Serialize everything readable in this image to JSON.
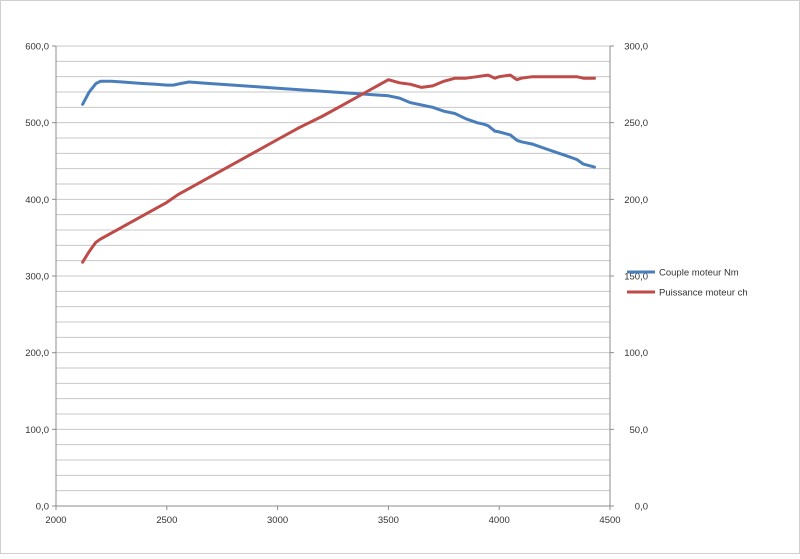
{
  "colors": {
    "couple": "#4a7ebb",
    "puissance": "#be4b48",
    "grid": "#c8c8c8",
    "axis": "#8c8c8c",
    "border": "#d0d0d0"
  },
  "chart_data": {
    "type": "line",
    "title": "",
    "xlim": [
      2000,
      4500
    ],
    "x_ticks": [
      "2000",
      "2500",
      "3000",
      "3500",
      "4000",
      "4500"
    ],
    "y_left": {
      "lim": [
        0,
        600
      ],
      "ticks": [
        "0,0",
        "100,0",
        "200,0",
        "300,0",
        "400,0",
        "500,0",
        "600,0"
      ]
    },
    "y_right": {
      "lim": [
        0,
        300
      ],
      "ticks": [
        "0,0",
        "50,0",
        "100,0",
        "150,0",
        "200,0",
        "250,0",
        "300,0"
      ]
    },
    "grid": true,
    "legend_position": "right",
    "series": [
      {
        "name": "Couple moteur  Nm",
        "axis": "left",
        "color": "#4a7ebb",
        "points": [
          [
            2120,
            524
          ],
          [
            2150,
            540
          ],
          [
            2180,
            551
          ],
          [
            2200,
            554
          ],
          [
            2250,
            554
          ],
          [
            2300,
            553
          ],
          [
            2400,
            551
          ],
          [
            2450,
            550
          ],
          [
            2500,
            549
          ],
          [
            2530,
            549
          ],
          [
            2560,
            551
          ],
          [
            2600,
            553
          ],
          [
            2700,
            551
          ],
          [
            2800,
            549
          ],
          [
            2900,
            547
          ],
          [
            3000,
            545
          ],
          [
            3100,
            543
          ],
          [
            3200,
            541
          ],
          [
            3300,
            539
          ],
          [
            3400,
            537
          ],
          [
            3500,
            535
          ],
          [
            3550,
            532
          ],
          [
            3600,
            526
          ],
          [
            3650,
            523
          ],
          [
            3700,
            520
          ],
          [
            3750,
            515
          ],
          [
            3800,
            512
          ],
          [
            3850,
            505
          ],
          [
            3900,
            500
          ],
          [
            3930,
            498
          ],
          [
            3950,
            496
          ],
          [
            3980,
            489
          ],
          [
            4000,
            488
          ],
          [
            4050,
            484
          ],
          [
            4080,
            477
          ],
          [
            4100,
            475
          ],
          [
            4150,
            472
          ],
          [
            4200,
            467
          ],
          [
            4250,
            462
          ],
          [
            4300,
            457
          ],
          [
            4350,
            452
          ],
          [
            4380,
            446
          ],
          [
            4430,
            442
          ]
        ]
      },
      {
        "name": "Puissance moteur  ch",
        "axis": "right",
        "color": "#be4b48",
        "points": [
          [
            2120,
            159
          ],
          [
            2150,
            166
          ],
          [
            2180,
            172
          ],
          [
            2200,
            174
          ],
          [
            2300,
            182
          ],
          [
            2400,
            190
          ],
          [
            2500,
            198
          ],
          [
            2550,
            203
          ],
          [
            2600,
            207
          ],
          [
            2700,
            215
          ],
          [
            2800,
            223
          ],
          [
            2900,
            231
          ],
          [
            3000,
            239
          ],
          [
            3100,
            247
          ],
          [
            3200,
            254
          ],
          [
            3300,
            262
          ],
          [
            3400,
            270
          ],
          [
            3500,
            278
          ],
          [
            3550,
            276
          ],
          [
            3600,
            275
          ],
          [
            3650,
            273
          ],
          [
            3700,
            274
          ],
          [
            3750,
            277
          ],
          [
            3800,
            279
          ],
          [
            3850,
            279
          ],
          [
            3900,
            280
          ],
          [
            3950,
            281
          ],
          [
            3980,
            279
          ],
          [
            4000,
            280
          ],
          [
            4050,
            281
          ],
          [
            4080,
            278
          ],
          [
            4100,
            279
          ],
          [
            4150,
            280
          ],
          [
            4200,
            280
          ],
          [
            4300,
            280
          ],
          [
            4350,
            280
          ],
          [
            4380,
            279
          ],
          [
            4430,
            279
          ]
        ]
      }
    ]
  }
}
